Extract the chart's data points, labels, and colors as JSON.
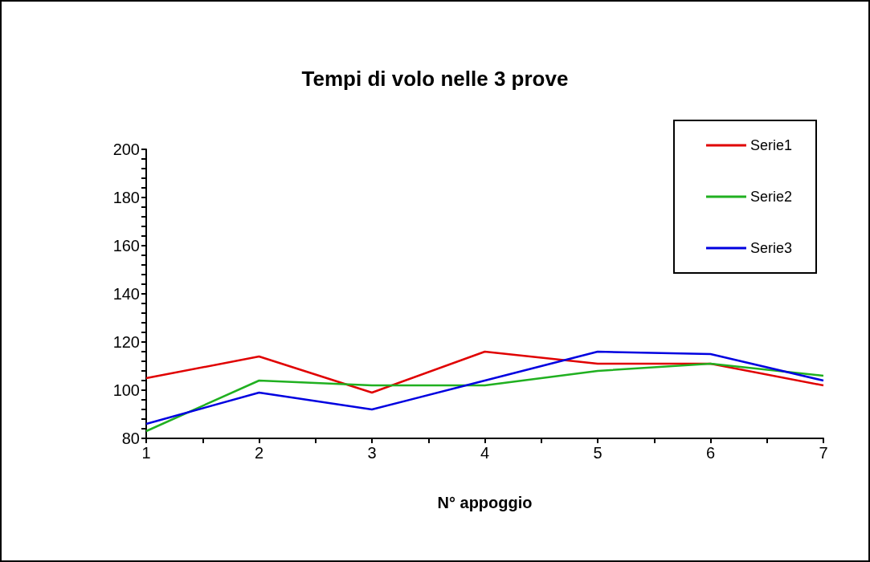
{
  "chart_data": {
    "type": "line",
    "title": "Tempi di volo nelle 3 prove",
    "xlabel": "N° appoggio",
    "x": [
      1,
      2,
      3,
      4,
      5,
      6,
      7
    ],
    "series": [
      {
        "name": "Serie1",
        "color": "#e00000",
        "values": [
          105,
          114,
          99,
          116,
          111,
          111,
          102
        ]
      },
      {
        "name": "Serie2",
        "color": "#20b020",
        "values": [
          83,
          104,
          102,
          102,
          108,
          111,
          106
        ]
      },
      {
        "name": "Serie3",
        "color": "#0000e0",
        "values": [
          86,
          99,
          92,
          104,
          116,
          115,
          104
        ]
      }
    ],
    "xlim": [
      1,
      7
    ],
    "xticks": [
      1,
      {
        "value": 1.5,
        "label": null
      },
      2,
      {
        "value": 2.5,
        "label": null
      },
      3,
      {
        "value": 3.5,
        "label": null
      },
      4,
      {
        "value": 4.5,
        "label": null
      },
      5,
      {
        "value": 5.5,
        "label": null
      },
      6,
      {
        "value": 6.5,
        "label": null
      },
      7
    ],
    "ylim": [
      80,
      200
    ],
    "yticks": [
      80,
      {
        "value": 84,
        "label": null
      },
      {
        "value": 88,
        "label": null
      },
      {
        "value": 92,
        "label": null
      },
      {
        "value": 96,
        "label": null
      },
      100,
      {
        "value": 104,
        "label": null
      },
      {
        "value": 108,
        "label": null
      },
      {
        "value": 112,
        "label": null
      },
      {
        "value": 116,
        "label": null
      },
      120,
      {
        "value": 124,
        "label": null
      },
      {
        "value": 128,
        "label": null
      },
      {
        "value": 132,
        "label": null
      },
      {
        "value": 136,
        "label": null
      },
      140,
      {
        "value": 144,
        "label": null
      },
      {
        "value": 148,
        "label": null
      },
      {
        "value": 152,
        "label": null
      },
      {
        "value": 156,
        "label": null
      },
      160,
      {
        "value": 164,
        "label": null
      },
      {
        "value": 168,
        "label": null
      },
      {
        "value": 172,
        "label": null
      },
      {
        "value": 176,
        "label": null
      },
      180,
      {
        "value": 184,
        "label": null
      },
      {
        "value": 188,
        "label": null
      },
      {
        "value": 192,
        "label": null
      },
      {
        "value": 196,
        "label": null
      },
      200
    ],
    "grid": false,
    "legend": "top right",
    "marker": "none",
    "line_style": "solid"
  }
}
